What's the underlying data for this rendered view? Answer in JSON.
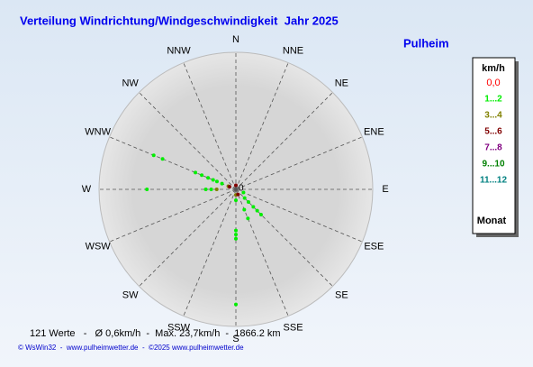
{
  "chart_data": {
    "type": "windrose",
    "title": "Verteilung Windrichtung/Windgeschwindigkeit  Jahr 2025",
    "location": "Pulheim",
    "categories": [
      "N",
      "NNE",
      "NE",
      "ENE",
      "E",
      "ESE",
      "SE",
      "SSE",
      "S",
      "SSW",
      "SW",
      "WSW",
      "W",
      "WNW",
      "NW",
      "NNW"
    ],
    "rlim": [
      0,
      10
    ],
    "rticks": [
      0
    ],
    "legend_title": "km/h",
    "legend_footer": "Monat",
    "series": [
      {
        "name": "0,0",
        "color": "#ff0000",
        "theta": [],
        "r": []
      },
      {
        "name": "1...2",
        "color": "#00ee00",
        "theta": [
          292.5,
          292.5,
          270,
          292.5,
          292.5,
          292.5,
          292.5,
          292.5,
          292.5,
          270,
          270,
          135,
          135,
          135,
          135,
          135,
          157.5,
          157.5,
          180,
          180,
          180,
          180,
          180,
          112.5
        ],
        "r": [
          6.5,
          5.8,
          6.5,
          3.2,
          2.7,
          2.2,
          1.8,
          1.5,
          1.1,
          2.2,
          1.8,
          0.9,
          1.3,
          1.8,
          2.2,
          2.6,
          1.6,
          2.3,
          0.8,
          3.0,
          3.3,
          3.6,
          8.4,
          0.6
        ]
      },
      {
        "name": "3...4",
        "color": "#808000",
        "theta": [
          270,
          292.5,
          180
        ],
        "r": [
          1.4,
          0.6,
          0.4
        ]
      },
      {
        "name": "5...6",
        "color": "#800000",
        "theta": [
          292.5,
          157.5,
          0
        ],
        "r": [
          0.5,
          0.4,
          0.3
        ]
      },
      {
        "name": "7...8",
        "color": "#800080",
        "theta": [],
        "r": []
      },
      {
        "name": "9...10",
        "color": "#008000",
        "theta": [],
        "r": []
      },
      {
        "name": "11...12",
        "color": "#008080",
        "theta": [],
        "r": []
      }
    ],
    "footer": "121 Werte   -   Ø 0,6km/h  -  Max. 23,7km/h  -  1866.2 km",
    "credit": "© WsWin32  -  www.pulheimwetter.de  -  ©2025 www.pulheimwetter.de"
  }
}
